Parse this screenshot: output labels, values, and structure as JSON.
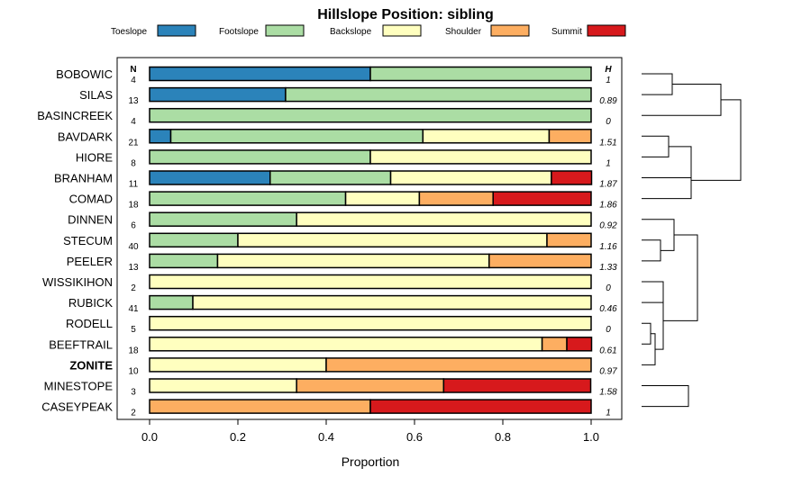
{
  "chart_data": {
    "type": "bar",
    "stacked": true,
    "orientation": "horizontal",
    "title": "Hillslope Position: sibling",
    "xlabel": "Proportion",
    "xlim": [
      0,
      1
    ],
    "x_ticks": [
      "0.0",
      "0.2",
      "0.4",
      "0.6",
      "0.8",
      "1.0"
    ],
    "n_header": "N",
    "h_header": "H",
    "highlight": "ZONITE",
    "legend": [
      {
        "name": "Toeslope",
        "color": "#2b83ba"
      },
      {
        "name": "Footslope",
        "color": "#abdda4"
      },
      {
        "name": "Backslope",
        "color": "#ffffbf"
      },
      {
        "name": "Shoulder",
        "color": "#fdae61"
      },
      {
        "name": "Summit",
        "color": "#d7191c"
      }
    ],
    "rows": [
      {
        "name": "BOBOWIC",
        "n": "4",
        "h": "1",
        "values": [
          0.5,
          0.5,
          0,
          0,
          0
        ]
      },
      {
        "name": "SILAS",
        "n": "13",
        "h": "0.89",
        "values": [
          0.308,
          0.692,
          0,
          0,
          0
        ]
      },
      {
        "name": "BASINCREEK",
        "n": "4",
        "h": "0",
        "values": [
          0,
          1,
          0,
          0,
          0
        ]
      },
      {
        "name": "BAVDARK",
        "n": "21",
        "h": "1.51",
        "values": [
          0.048,
          0.571,
          0.286,
          0.095,
          0
        ]
      },
      {
        "name": "HIORE",
        "n": "8",
        "h": "1",
        "values": [
          0,
          0.5,
          0.5,
          0,
          0
        ]
      },
      {
        "name": "BRANHAM",
        "n": "11",
        "h": "1.87",
        "values": [
          0.273,
          0.273,
          0.364,
          0,
          0.091
        ]
      },
      {
        "name": "COMAD",
        "n": "18",
        "h": "1.86",
        "values": [
          0,
          0.444,
          0.167,
          0.167,
          0.222
        ]
      },
      {
        "name": "DINNEN",
        "n": "6",
        "h": "0.92",
        "values": [
          0,
          0.333,
          0.667,
          0,
          0
        ]
      },
      {
        "name": "STECUM",
        "n": "40",
        "h": "1.16",
        "values": [
          0,
          0.2,
          0.7,
          0.1,
          0
        ]
      },
      {
        "name": "PEELER",
        "n": "13",
        "h": "1.33",
        "values": [
          0,
          0.154,
          0.615,
          0.231,
          0
        ]
      },
      {
        "name": "WISSIKIHON",
        "n": "2",
        "h": "0",
        "values": [
          0,
          0,
          1,
          0,
          0
        ]
      },
      {
        "name": "RUBICK",
        "n": "41",
        "h": "0.46",
        "values": [
          0,
          0.098,
          0.902,
          0,
          0
        ]
      },
      {
        "name": "RODELL",
        "n": "5",
        "h": "0",
        "values": [
          0,
          0,
          1,
          0,
          0
        ]
      },
      {
        "name": "BEEFTRAIL",
        "n": "18",
        "h": "0.61",
        "values": [
          0,
          0,
          0.889,
          0.056,
          0.056
        ]
      },
      {
        "name": "ZONITE",
        "n": "10",
        "h": "0.97",
        "values": [
          0,
          0,
          0.4,
          0.6,
          0
        ]
      },
      {
        "name": "MINESTOPE",
        "n": "3",
        "h": "1.58",
        "values": [
          0,
          0,
          0.333,
          0.333,
          0.333
        ]
      },
      {
        "name": "CASEYPEAK",
        "n": "2",
        "h": "1",
        "values": [
          0,
          0,
          0,
          0.5,
          0.5
        ]
      }
    ]
  }
}
